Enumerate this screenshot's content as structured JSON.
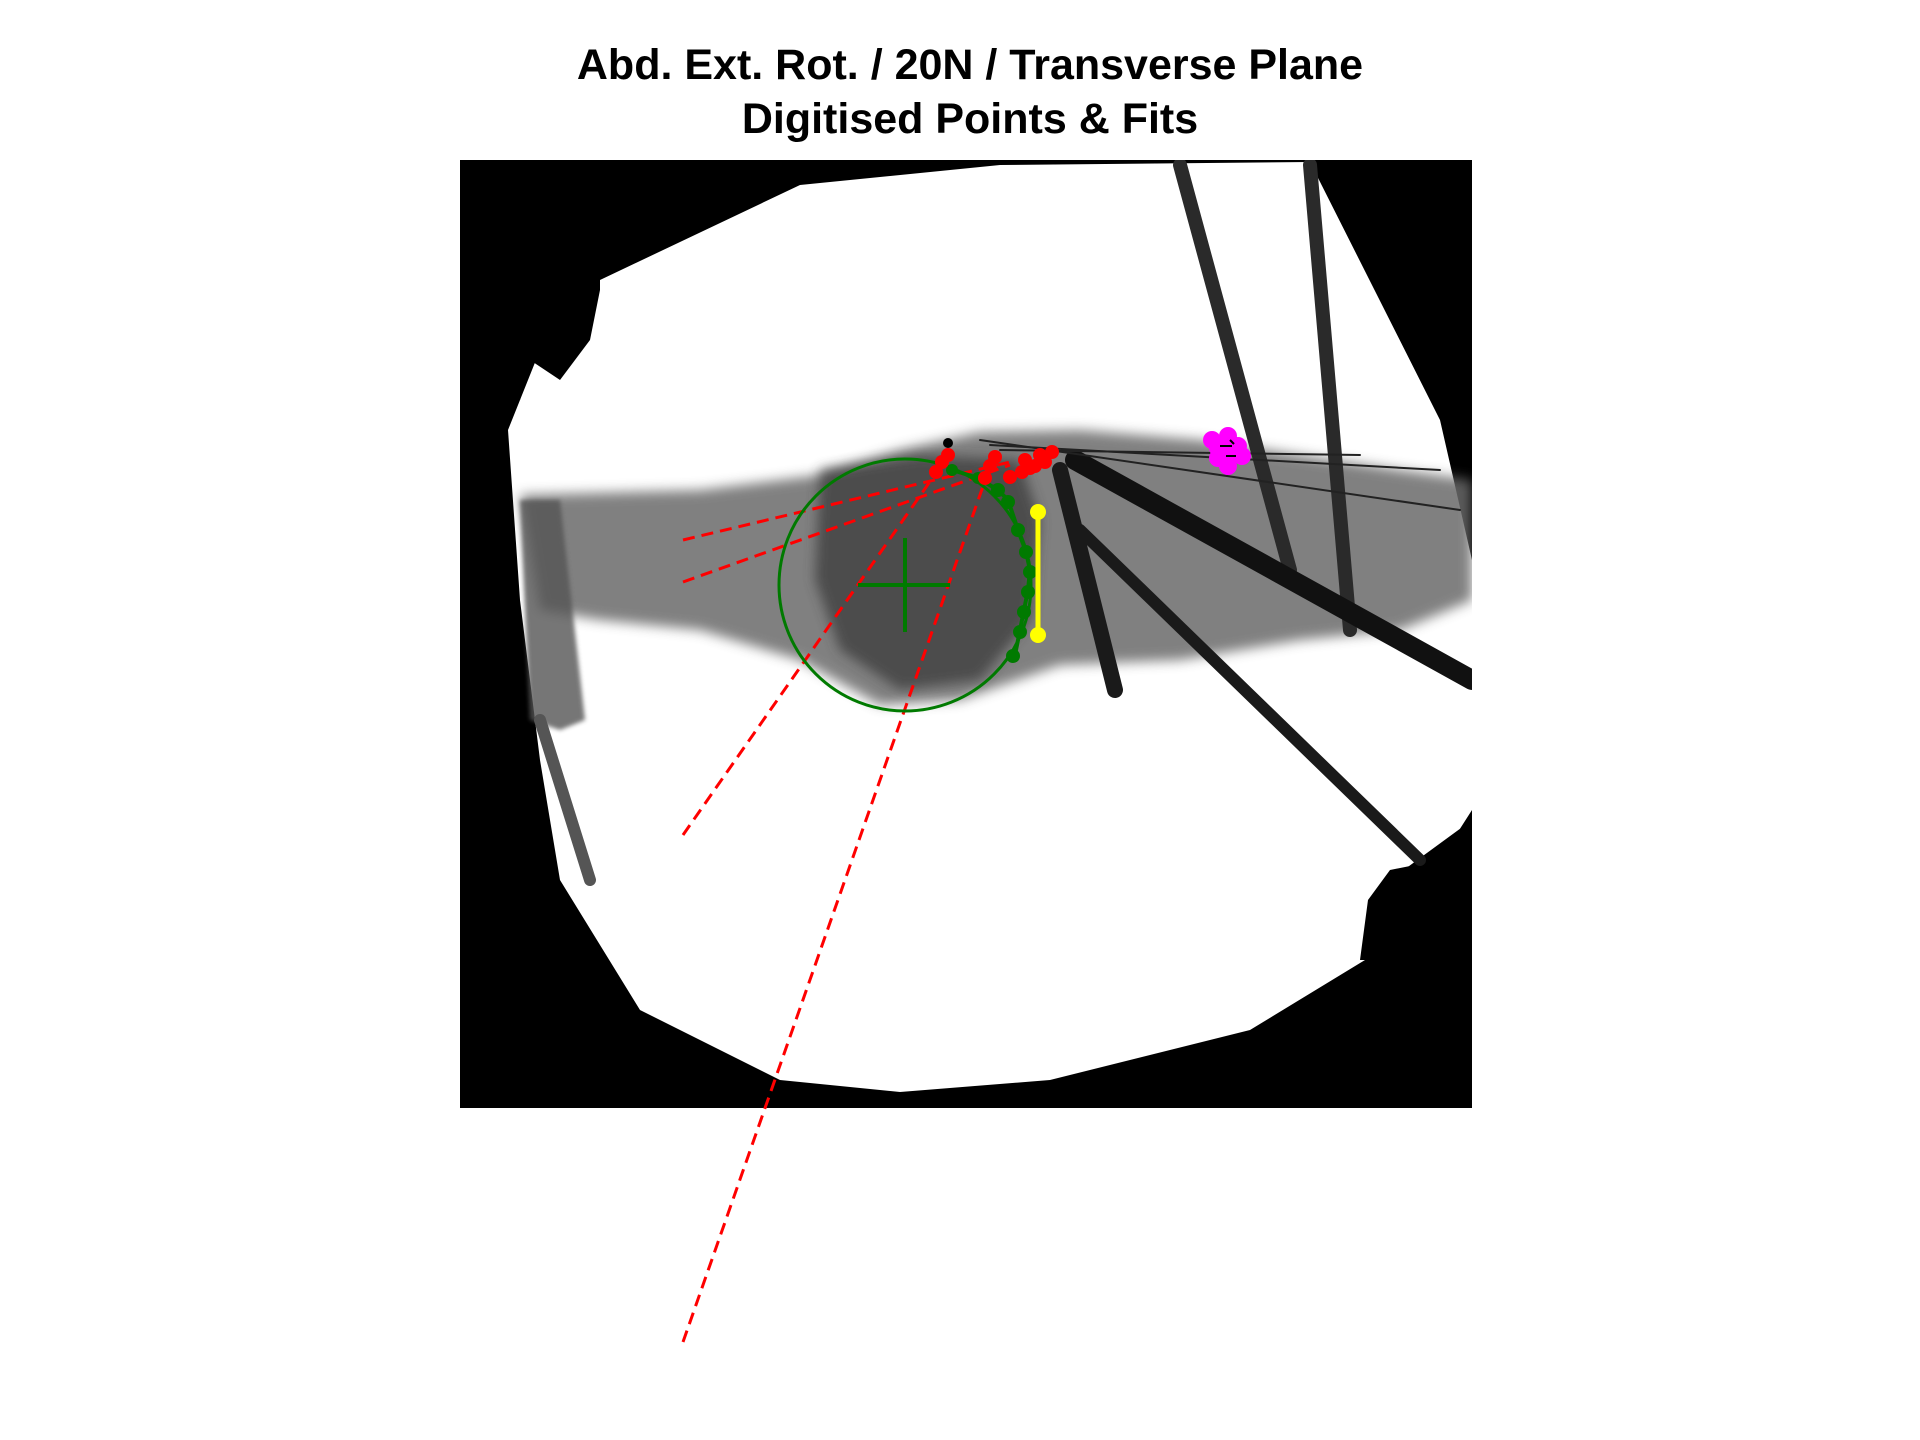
{
  "title": {
    "line1": "Abd. Ext. Rot. / 20N / Transverse Plane",
    "line2": "Digitised Points & Fits"
  },
  "colors": {
    "background": "#ffffff",
    "xray_frame": "#000000",
    "digitised_points": "#ff0000",
    "fit_lines": "#ff0000",
    "circle_fit": "#007a00",
    "contour_points": "#007a00",
    "measure_line": "#ffff00",
    "marker_cluster": "#ff00ff"
  }
}
